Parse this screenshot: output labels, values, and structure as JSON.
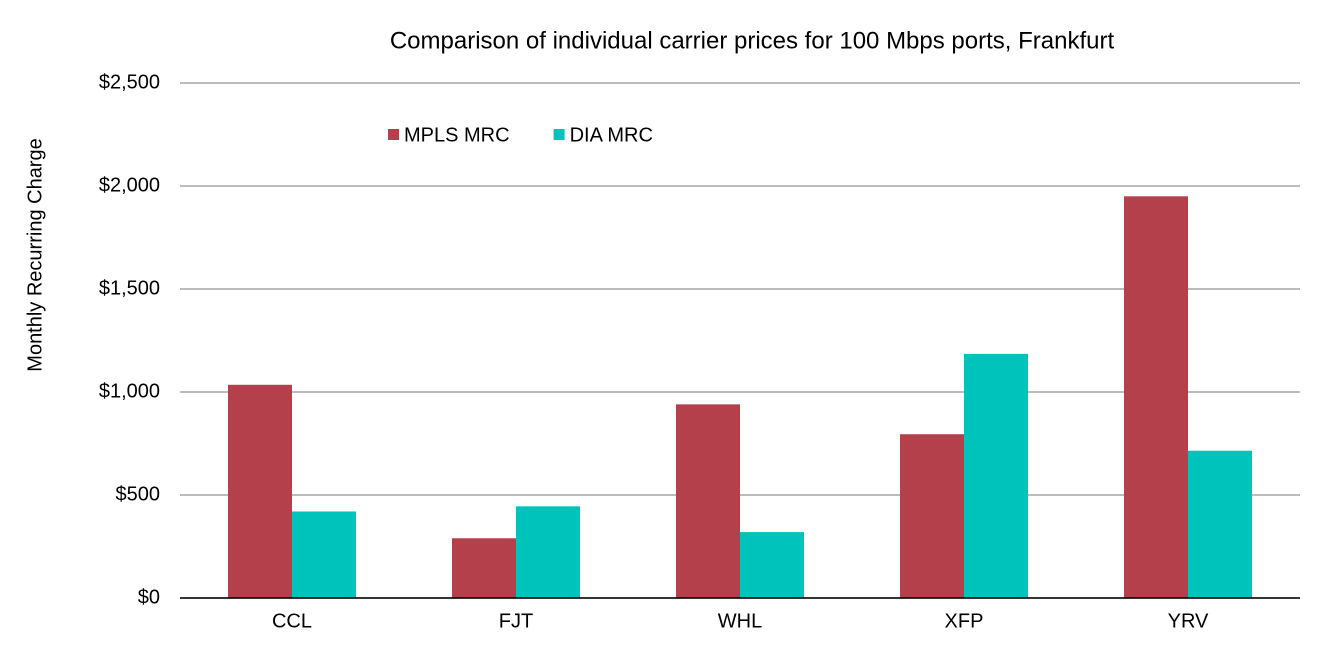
{
  "chart_data": {
    "type": "bar",
    "title": "Comparison of individual carrier prices for 100 Mbps ports, Frankfurt",
    "y_label": "Monthly Recurring Charge",
    "categories": [
      "CCL",
      "FJT",
      "WHL",
      "XFP",
      "YRV"
    ],
    "series": [
      {
        "name": "MPLS MRC",
        "color": "#b3404a",
        "values": [
          1035,
          290,
          940,
          795,
          1950
        ]
      },
      {
        "name": "DIA MRC",
        "color": "#00c4bb",
        "values": [
          420,
          445,
          320,
          1185,
          715
        ]
      }
    ],
    "ylim": [
      0,
      2500
    ],
    "yticks": [
      {
        "value": 0,
        "label": "$0"
      },
      {
        "value": 500,
        "label": "$500"
      },
      {
        "value": 1000,
        "label": "$1,000"
      },
      {
        "value": 1500,
        "label": "$1,500"
      },
      {
        "value": 2000,
        "label": "$2,000"
      },
      {
        "value": 2500,
        "label": "$2,500"
      }
    ],
    "grid": true,
    "legend": "top-left"
  }
}
